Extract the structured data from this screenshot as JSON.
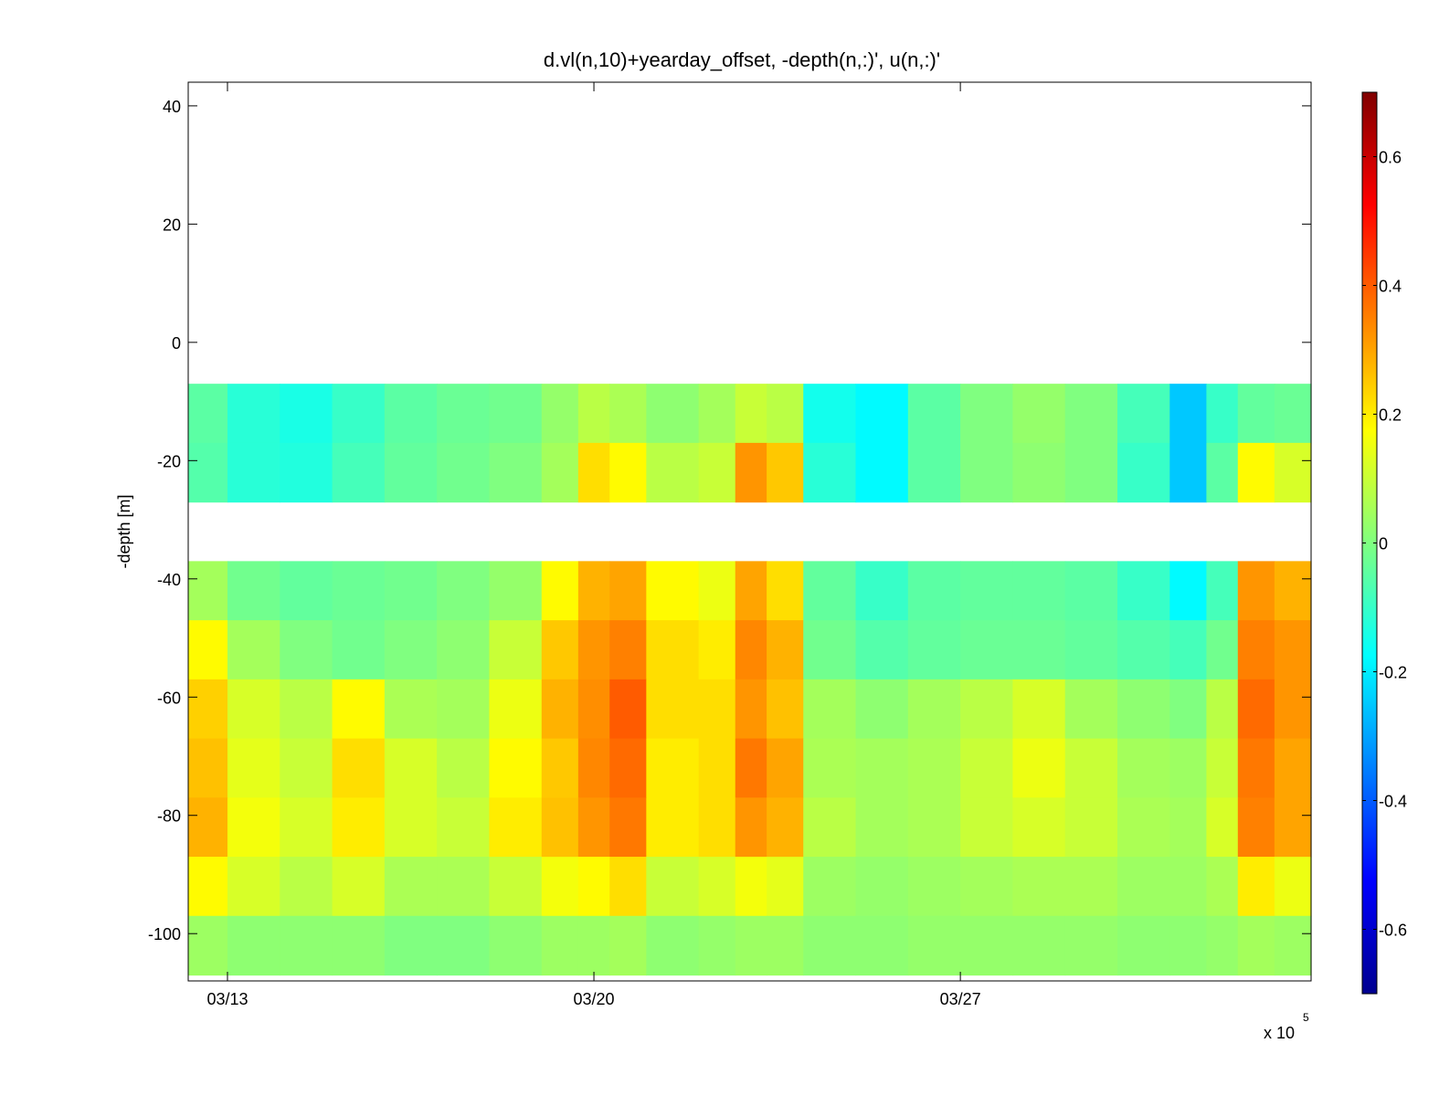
{
  "chart_data": {
    "type": "heatmap",
    "title": "d.vl(n,10)+yearday_offset, -depth(n,:)', u(n,:)'",
    "xlabel": "",
    "ylabel": "-depth [m]",
    "x_exponent_label": "x 10",
    "x_exponent": "5",
    "x_ticks": [
      {
        "value": 13,
        "label": "03/13"
      },
      {
        "value": 20,
        "label": "03/20"
      },
      {
        "value": 27,
        "label": "03/27"
      }
    ],
    "xlim": [
      12.25,
      33.7
    ],
    "ylim": [
      -108,
      44
    ],
    "y_ticks": [
      40,
      20,
      0,
      -20,
      -40,
      -60,
      -80,
      -100
    ],
    "y_tick_labels": [
      "40",
      "20",
      "0",
      "-20",
      "-40",
      "-60",
      "-80",
      "-100"
    ],
    "colorbar": {
      "min": -0.7,
      "max": 0.7,
      "ticks": [
        0.6,
        0.4,
        0.2,
        0,
        -0.2,
        -0.4,
        -0.6
      ],
      "tick_labels": [
        "0.6",
        "0.4",
        "0.2",
        "0",
        "-0.2",
        "-0.4",
        "-0.6"
      ],
      "colormap": "jet"
    },
    "depth_bins": [
      {
        "top": -7,
        "bottom": -17
      },
      {
        "top": -17,
        "bottom": -27
      },
      {
        "top": -37,
        "bottom": -47
      },
      {
        "top": -47,
        "bottom": -57
      },
      {
        "top": -57,
        "bottom": -67
      },
      {
        "top": -67,
        "bottom": -77
      },
      {
        "top": -77,
        "bottom": -87
      },
      {
        "top": -87,
        "bottom": -97
      },
      {
        "top": -97,
        "bottom": -107
      }
    ],
    "time_bins_x": [
      12.25,
      13.0,
      14.0,
      15.0,
      16.0,
      17.0,
      18.0,
      19.0,
      19.7,
      20.3,
      21.0,
      22.0,
      22.7,
      23.3,
      24.0,
      25.0,
      26.0,
      27.0,
      28.0,
      29.0,
      30.0,
      31.0,
      31.7,
      32.3,
      33.0,
      33.7
    ],
    "u_values": [
      [
        -0.05,
        -0.12,
        -0.14,
        -0.1,
        -0.05,
        -0.03,
        -0.02,
        0.03,
        0.08,
        0.06,
        0.02,
        0.05,
        0.1,
        0.08,
        -0.15,
        -0.18,
        -0.05,
        0.0,
        0.03,
        0.0,
        -0.08,
        -0.25,
        -0.1,
        -0.04,
        -0.03
      ],
      [
        -0.06,
        -0.12,
        -0.13,
        -0.08,
        -0.04,
        -0.02,
        0.0,
        0.05,
        0.22,
        0.18,
        0.08,
        0.1,
        0.32,
        0.25,
        -0.12,
        -0.18,
        -0.05,
        0.0,
        0.02,
        0.0,
        -0.1,
        -0.25,
        -0.05,
        0.18,
        0.12
      ],
      [
        0.05,
        -0.02,
        -0.04,
        -0.03,
        -0.02,
        0.0,
        0.03,
        0.18,
        0.28,
        0.3,
        0.18,
        0.15,
        0.3,
        0.22,
        -0.04,
        -0.1,
        -0.05,
        -0.04,
        -0.04,
        -0.05,
        -0.1,
        -0.18,
        -0.08,
        0.32,
        0.28
      ],
      [
        0.18,
        0.05,
        0.0,
        -0.02,
        0.0,
        0.02,
        0.1,
        0.25,
        0.32,
        0.35,
        0.22,
        0.2,
        0.34,
        0.28,
        -0.02,
        -0.06,
        -0.04,
        -0.03,
        -0.03,
        -0.04,
        -0.06,
        -0.08,
        -0.02,
        0.35,
        0.32
      ],
      [
        0.24,
        0.12,
        0.08,
        0.18,
        0.06,
        0.05,
        0.15,
        0.28,
        0.33,
        0.4,
        0.22,
        0.22,
        0.32,
        0.26,
        0.05,
        0.02,
        0.05,
        0.08,
        0.12,
        0.05,
        0.02,
        0.0,
        0.08,
        0.38,
        0.32
      ],
      [
        0.26,
        0.14,
        0.1,
        0.22,
        0.12,
        0.08,
        0.18,
        0.25,
        0.34,
        0.38,
        0.2,
        0.22,
        0.36,
        0.3,
        0.06,
        0.05,
        0.06,
        0.1,
        0.15,
        0.1,
        0.05,
        0.04,
        0.1,
        0.36,
        0.3
      ],
      [
        0.28,
        0.16,
        0.12,
        0.2,
        0.12,
        0.1,
        0.2,
        0.26,
        0.32,
        0.36,
        0.2,
        0.22,
        0.32,
        0.28,
        0.08,
        0.05,
        0.06,
        0.1,
        0.12,
        0.1,
        0.06,
        0.05,
        0.12,
        0.35,
        0.3
      ],
      [
        0.18,
        0.12,
        0.08,
        0.12,
        0.06,
        0.06,
        0.1,
        0.16,
        0.18,
        0.22,
        0.1,
        0.12,
        0.16,
        0.14,
        0.04,
        0.03,
        0.04,
        0.05,
        0.06,
        0.06,
        0.04,
        0.04,
        0.06,
        0.2,
        0.15
      ],
      [
        0.04,
        0.02,
        0.02,
        0.02,
        0.0,
        0.0,
        0.02,
        0.04,
        0.04,
        0.05,
        0.02,
        0.03,
        0.04,
        0.04,
        0.02,
        0.02,
        0.03,
        0.03,
        0.03,
        0.03,
        0.02,
        0.02,
        0.03,
        0.05,
        0.04
      ]
    ]
  }
}
